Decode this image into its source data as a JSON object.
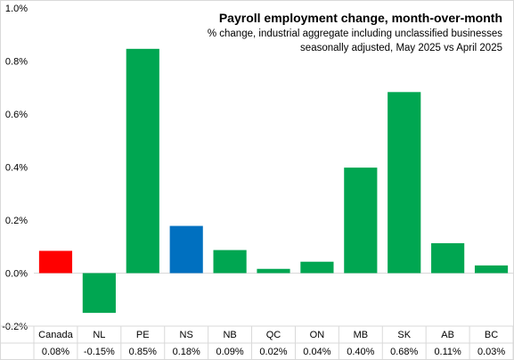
{
  "chart_data": {
    "type": "bar",
    "title": "Payroll employment change, month-over-month",
    "subtitle_lines": [
      "% change, industrial aggregate  including unclassified businesses",
      "seasonally adjusted, May 2025 vs April 2025"
    ],
    "xlabel": "",
    "ylabel": "",
    "ylim": [
      -0.2,
      1.0
    ],
    "yticks": [
      {
        "value": -0.2,
        "label": "-0.2%"
      },
      {
        "value": 0.0,
        "label": "0.0%"
      },
      {
        "value": 0.2,
        "label": "0.2%"
      },
      {
        "value": 0.4,
        "label": "0.4%"
      },
      {
        "value": 0.6,
        "label": "0.6%"
      },
      {
        "value": 0.8,
        "label": "0.8%"
      },
      {
        "value": 1.0,
        "label": "1.0%"
      }
    ],
    "grid": false,
    "categories": [
      "Canada",
      "NL",
      "PE",
      "NS",
      "NB",
      "QC",
      "ON",
      "MB",
      "SK",
      "AB",
      "BC"
    ],
    "values": [
      0.084,
      -0.15,
      0.846,
      0.178,
      0.087,
      0.016,
      0.043,
      0.398,
      0.683,
      0.113,
      0.029
    ],
    "value_labels": [
      "0.08%",
      "-0.15%",
      "0.85%",
      "0.18%",
      "0.09%",
      "0.02%",
      "0.04%",
      "0.40%",
      "0.68%",
      "0.11%",
      "0.03%"
    ],
    "colors": [
      "#ff0000",
      "#00a651",
      "#00a651",
      "#0070c0",
      "#00a651",
      "#00a651",
      "#00a651",
      "#00a651",
      "#00a651",
      "#00a651",
      "#00a651"
    ],
    "axis_color": "#d9d9d9"
  }
}
